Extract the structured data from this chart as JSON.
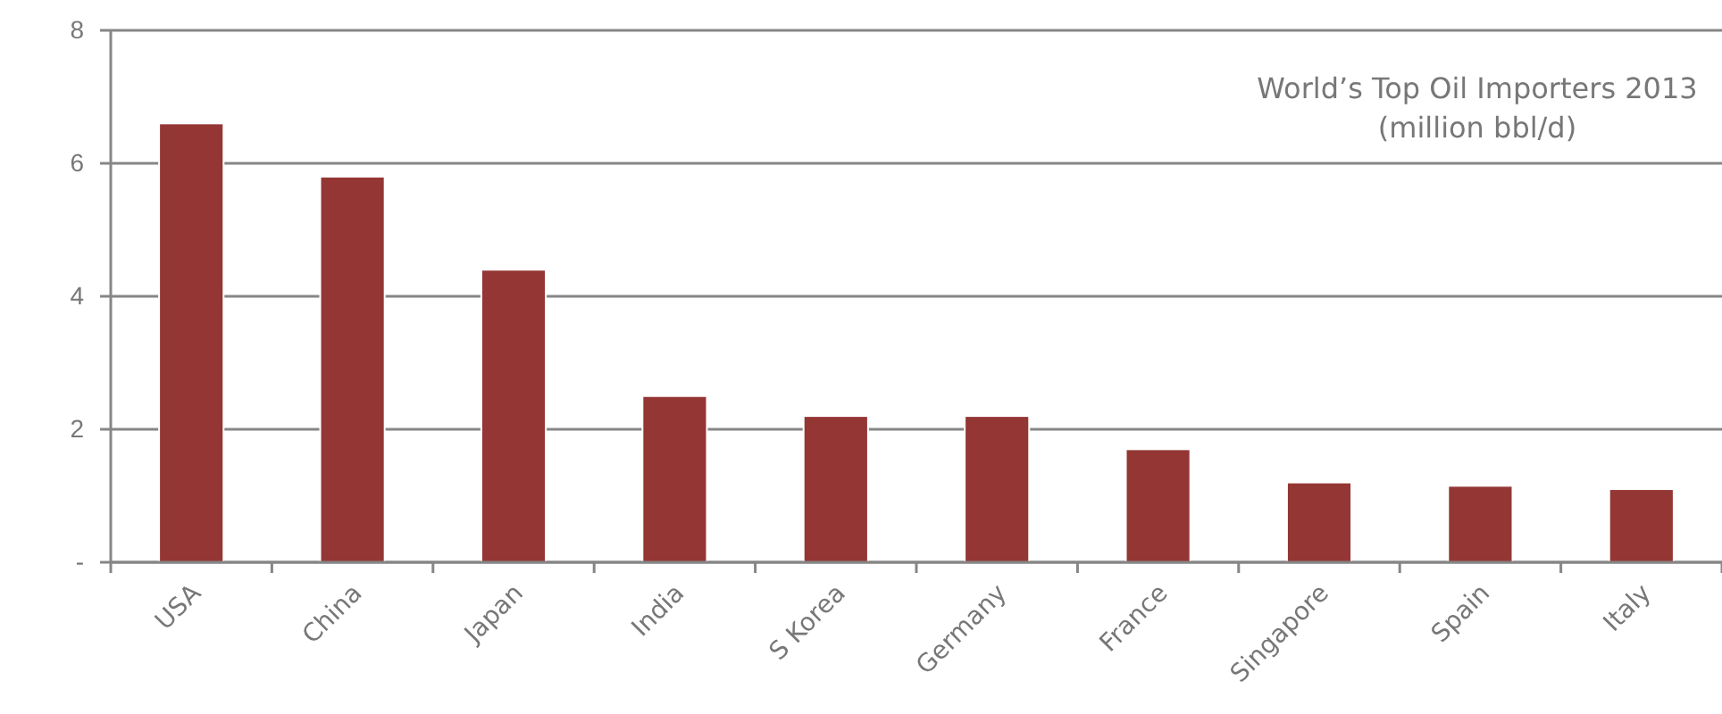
{
  "chart_data": {
    "type": "bar",
    "title": "World’s Top Oil Importers 2013",
    "subtitle": "(million bbl/d)",
    "categories": [
      "USA",
      "China",
      "Japan",
      "India",
      "S Korea",
      "Germany",
      "France",
      "Singapore",
      "Spain",
      "Italy"
    ],
    "values": [
      6.6,
      5.8,
      4.4,
      2.5,
      2.2,
      2.2,
      1.7,
      1.2,
      1.15,
      1.1
    ],
    "color": "#943634",
    "ylim": [
      0,
      8
    ],
    "yticks": [
      {
        "value": 0,
        "label": "-"
      },
      2,
      4,
      6,
      8
    ],
    "grid": "y"
  }
}
